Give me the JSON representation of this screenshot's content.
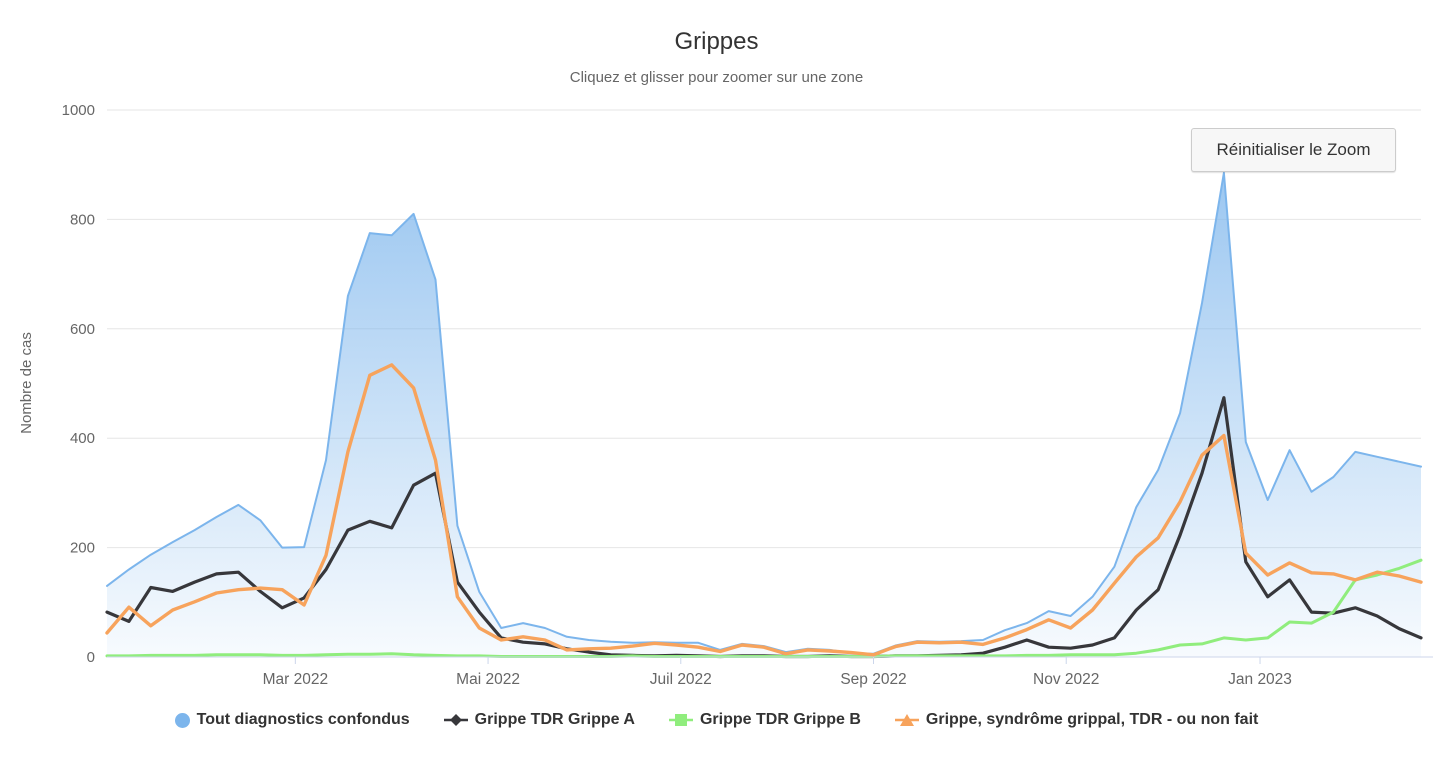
{
  "header": {
    "title": "Grippes",
    "subtitle": "Cliquez et glisser pour zoomer sur une zone"
  },
  "toolbar": {
    "reset_zoom_label": "Réinitialiser le Zoom"
  },
  "chart_data": {
    "type": "area",
    "title": "Grippes",
    "subtitle": "Cliquez et glisser pour zoomer sur une zone",
    "xlabel": "",
    "ylabel": "Nombre de cas",
    "ylim": [
      0,
      1000
    ],
    "y_ticks": [
      0,
      200,
      400,
      600,
      800,
      1000
    ],
    "grid": true,
    "legend_position": "bottom",
    "x_unit": "week",
    "x_range_note": "janvier 2022 à février 2023, données hebdomadaires",
    "x_ticks": [
      {
        "label": "Mar 2022",
        "week": 8.6
      },
      {
        "label": "Mai 2022",
        "week": 17.4
      },
      {
        "label": "Juil 2022",
        "week": 26.2
      },
      {
        "label": "Sep 2022",
        "week": 35.0
      },
      {
        "label": "Nov 2022",
        "week": 43.8
      },
      {
        "label": "Jan 2023",
        "week": 52.65
      }
    ],
    "series": [
      {
        "name": "Tout diagnostics confondus",
        "type": "area",
        "color": "#7cb5ec",
        "marker": "circle",
        "values": [
          130,
          160,
          187,
          210,
          232,
          256,
          278,
          250,
          200,
          201,
          360,
          660,
          775,
          771,
          810,
          690,
          240,
          119,
          53,
          62,
          53,
          37,
          31,
          28,
          26,
          27,
          26,
          26,
          13,
          24,
          20,
          9,
          15,
          13,
          7,
          6,
          21,
          29,
          28,
          29,
          31,
          49,
          62,
          84,
          75,
          110,
          165,
          274,
          342,
          446,
          647,
          885,
          393,
          287,
          378,
          302,
          329,
          375,
          366,
          357,
          348
        ]
      },
      {
        "name": "Grippe TDR Grippe A",
        "type": "line",
        "color": "#37373b",
        "marker": "diamond",
        "values": [
          82,
          65,
          127,
          120,
          137,
          152,
          155,
          120,
          90,
          108,
          160,
          232,
          248,
          236,
          314,
          336,
          137,
          82,
          35,
          27,
          24,
          15,
          9,
          4,
          3,
          2,
          3,
          2,
          1,
          2,
          2,
          1,
          1,
          2,
          1,
          1,
          2,
          2,
          3,
          4,
          7,
          18,
          31,
          18,
          16,
          22,
          35,
          86,
          123,
          223,
          336,
          474,
          174,
          110,
          141,
          82,
          80,
          90,
          75,
          52,
          35
        ]
      },
      {
        "name": "Grippe TDR Grippe B",
        "type": "line",
        "color": "#90ed7d",
        "marker": "square",
        "values": [
          2,
          2,
          3,
          3,
          3,
          4,
          4,
          4,
          3,
          3,
          4,
          5,
          5,
          6,
          4,
          3,
          2,
          2,
          1,
          1,
          1,
          1,
          1,
          1,
          2,
          1,
          1,
          1,
          1,
          1,
          1,
          1,
          1,
          1,
          1,
          1,
          2,
          2,
          2,
          2,
          2,
          2,
          3,
          3,
          4,
          4,
          4,
          7,
          13,
          22,
          24,
          35,
          31,
          35,
          64,
          62,
          82,
          141,
          150,
          162,
          177
        ]
      },
      {
        "name": "Grippe, syndrôme grippal, TDR - ou non fait",
        "type": "line",
        "color": "#f7a35c",
        "marker": "triangle",
        "values": [
          44,
          91,
          57,
          86,
          101,
          117,
          123,
          126,
          123,
          95,
          186,
          375,
          515,
          534,
          492,
          360,
          110,
          53,
          31,
          37,
          31,
          13,
          15,
          16,
          20,
          25,
          22,
          18,
          10,
          22,
          18,
          6,
          13,
          11,
          8,
          4,
          19,
          27,
          26,
          27,
          23,
          35,
          50,
          68,
          53,
          86,
          135,
          183,
          218,
          284,
          369,
          405,
          190,
          150,
          172,
          154,
          152,
          141,
          155,
          148,
          137
        ]
      }
    ],
    "colors": {
      "gridline": "#e6e6e6",
      "axis_line": "#ccd6eb",
      "axis_label": "#666666",
      "title": "#333333",
      "subtitle": "#666666",
      "legend_text": "#333333"
    }
  }
}
